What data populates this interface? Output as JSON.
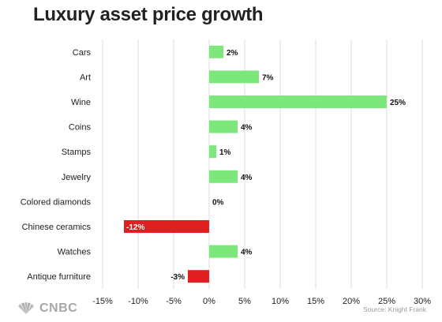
{
  "title": "Luxury asset price growth",
  "source": "Source: Knight Frank",
  "logo": {
    "text": "CNBC",
    "icon": "peacock-icon"
  },
  "colors": {
    "positive": "#7ce87c",
    "negative": "#e02020",
    "grid": "#dcdcdc"
  },
  "chart_data": {
    "type": "bar",
    "orientation": "horizontal",
    "title": "Luxury asset price growth",
    "xlabel": "",
    "ylabel": "",
    "categories": [
      "Cars",
      "Art",
      "Wine",
      "Coins",
      "Stamps",
      "Jewelry",
      "Colored diamonds",
      "Chinese ceramics",
      "Watches",
      "Antique furniture"
    ],
    "values": [
      2,
      7,
      25,
      4,
      1,
      4,
      0,
      -12,
      4,
      -3
    ],
    "value_labels": [
      "2%",
      "7%",
      "25%",
      "4%",
      "1%",
      "4%",
      "0%",
      "-12%",
      "4%",
      "-3%"
    ],
    "xlim": [
      -15,
      30
    ],
    "xticks": [
      -15,
      -10,
      -5,
      0,
      5,
      10,
      15,
      20,
      25,
      30
    ],
    "xtick_labels": [
      "-15%",
      "-10%",
      "-5%",
      "0%",
      "5%",
      "10%",
      "15%",
      "20%",
      "25%",
      "30%"
    ],
    "grid": "vertical"
  }
}
